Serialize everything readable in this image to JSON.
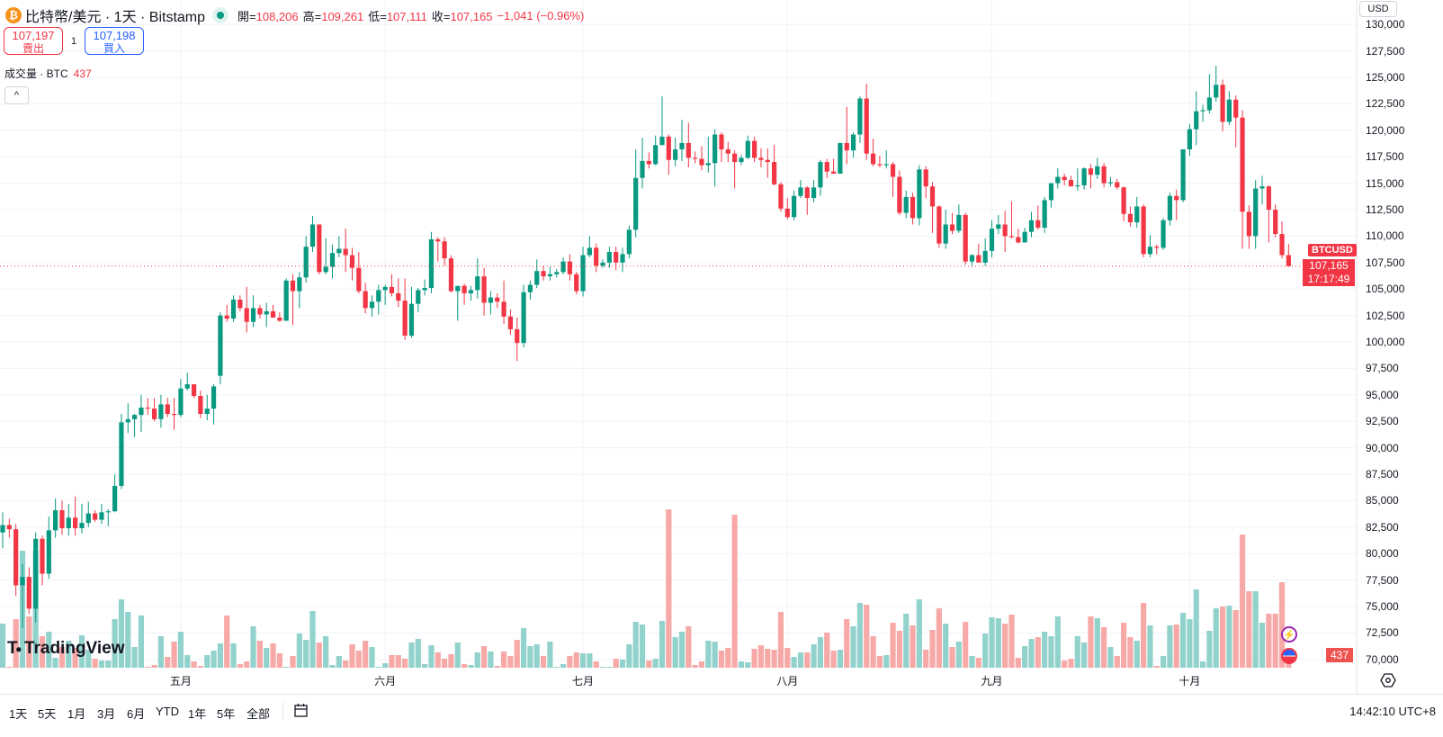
{
  "header": {
    "symbol_icon": "bitcoin-icon",
    "title": "比特幣/美元 · 1天 · Bitstamp",
    "open_label": "開=",
    "open": "108,206",
    "high_label": "高=",
    "high": "109,261",
    "low_label": "低=",
    "low": "107,111",
    "close_label": "收=",
    "close": "107,165",
    "change": "−1,041 (−0.96%)"
  },
  "trade": {
    "sell_price": "107,197",
    "sell_label": "賣出",
    "quantity": "1",
    "buy_price": "107,198",
    "buy_label": "買入"
  },
  "volume_legend": {
    "label": "成交量 · BTC",
    "value": "437"
  },
  "collapse_icon": "^",
  "currency": "USD",
  "price_axis": [
    "130,000",
    "127,500",
    "125,000",
    "122,500",
    "120,000",
    "117,500",
    "115,000",
    "112,500",
    "110,000",
    "107,500",
    "105,000",
    "102,500",
    "100,000",
    "97,500",
    "95,000",
    "92,500",
    "90,000",
    "87,500",
    "85,000",
    "82,500",
    "80,000",
    "77,500",
    "75,000",
    "72,500",
    "70,000"
  ],
  "last_price": {
    "symbol": "BTCUSD",
    "price": "107,165",
    "countdown": "17:17:49"
  },
  "volume_tag": "437",
  "months": [
    {
      "label": "五月",
      "index": 27
    },
    {
      "label": "六月",
      "index": 58
    },
    {
      "label": "七月",
      "index": 88
    },
    {
      "label": "八月",
      "index": 119
    },
    {
      "label": "九月",
      "index": 150
    },
    {
      "label": "十月",
      "index": 180
    }
  ],
  "bottom_bar": {
    "ranges": [
      "1天",
      "5天",
      "1月",
      "3月",
      "6月",
      "YTD",
      "1年",
      "5年",
      "全部"
    ],
    "clock": "14:42:10 UTC+8"
  },
  "logo": "TradingView",
  "colors": {
    "up": "#089981",
    "down": "#f23645",
    "vol_up": "#92d2cc",
    "vol_down": "#f7a9a7"
  },
  "chart_data": {
    "type": "candlestick",
    "title": "比特幣/美元 · 1天 · Bitstamp",
    "ylim": [
      70000,
      131000
    ],
    "y_ticks_step": 2500,
    "grid": true,
    "ohlc": [
      [
        82000,
        83900,
        80500,
        82700
      ],
      [
        82700,
        83300,
        81500,
        82300
      ],
      [
        82300,
        82800,
        76000,
        77000
      ],
      [
        77000,
        79000,
        73000,
        77800
      ],
      [
        77800,
        78700,
        74300,
        74800
      ],
      [
        74800,
        82000,
        73500,
        81400
      ],
      [
        81400,
        81700,
        77000,
        78100
      ],
      [
        78100,
        83500,
        77600,
        82200
      ],
      [
        82200,
        85200,
        81500,
        84100
      ],
      [
        84100,
        85000,
        81800,
        82400
      ],
      [
        82400,
        84700,
        81700,
        83400
      ],
      [
        83400,
        85400,
        81700,
        82400
      ],
      [
        82400,
        84700,
        81900,
        82900
      ],
      [
        82900,
        84900,
        82500,
        83800
      ],
      [
        83800,
        84100,
        83000,
        83200
      ],
      [
        83200,
        84700,
        82800,
        83900
      ],
      [
        83900,
        84200,
        82600,
        84000
      ],
      [
        84000,
        87500,
        83900,
        86400
      ],
      [
        86400,
        93200,
        86100,
        92400
      ],
      [
        92400,
        94200,
        91400,
        92700
      ],
      [
        92700,
        93200,
        91000,
        93100
      ],
      [
        93100,
        95000,
        91500,
        93800
      ],
      [
        93800,
        94700,
        93100,
        93700
      ],
      [
        93700,
        94700,
        92500,
        92700
      ],
      [
        92700,
        95000,
        91900,
        94100
      ],
      [
        94100,
        94700,
        92900,
        93200
      ],
      [
        93200,
        94700,
        91700,
        93100
      ],
      [
        93100,
        96500,
        92900,
        95600
      ],
      [
        95600,
        97100,
        95400,
        96000
      ],
      [
        96000,
        96000,
        94700,
        94900
      ],
      [
        94900,
        95400,
        92800,
        93200
      ],
      [
        93200,
        95000,
        92600,
        93700
      ],
      [
        93700,
        96000,
        92200,
        95800
      ],
      [
        96800,
        102800,
        96000,
        102500
      ],
      [
        102500,
        103500,
        101900,
        102200
      ],
      [
        102200,
        104400,
        101900,
        104000
      ],
      [
        104000,
        104400,
        102900,
        103200
      ],
      [
        103200,
        105200,
        100900,
        101900
      ],
      [
        101900,
        104400,
        101400,
        103200
      ],
      [
        103200,
        103500,
        102200,
        102600
      ],
      [
        102600,
        103700,
        101400,
        102900
      ],
      [
        102900,
        103500,
        102300,
        102300
      ],
      [
        102300,
        102800,
        101900,
        102000
      ],
      [
        102000,
        106000,
        102000,
        105800
      ],
      [
        105800,
        106400,
        101600,
        104800
      ],
      [
        104800,
        106600,
        103200,
        106100
      ],
      [
        106100,
        110000,
        105600,
        109000
      ],
      [
        109000,
        111900,
        108500,
        111100
      ],
      [
        111100,
        111100,
        106400,
        106600
      ],
      [
        106600,
        109800,
        106400,
        107100
      ],
      [
        107100,
        109200,
        106000,
        108400
      ],
      [
        108400,
        110000,
        108000,
        108800
      ],
      [
        108800,
        110700,
        106600,
        108200
      ],
      [
        108200,
        108900,
        105800,
        107000
      ],
      [
        107000,
        108500,
        104600,
        104800
      ],
      [
        104800,
        105600,
        102700,
        103200
      ],
      [
        103200,
        104400,
        102400,
        103800
      ],
      [
        103800,
        105400,
        102600,
        104900
      ],
      [
        104900,
        105400,
        103500,
        105200
      ],
      [
        105200,
        106400,
        104300,
        104600
      ],
      [
        104600,
        106000,
        103300,
        103900
      ],
      [
        103900,
        106000,
        100200,
        100600
      ],
      [
        100600,
        105200,
        100400,
        103600
      ],
      [
        103600,
        105100,
        102800,
        104900
      ],
      [
        104900,
        105900,
        104400,
        105100
      ],
      [
        105100,
        110400,
        104600,
        109700
      ],
      [
        109700,
        109900,
        107600,
        109500
      ],
      [
        109500,
        109900,
        107200,
        107900
      ],
      [
        107900,
        108200,
        104700,
        104800
      ],
      [
        104800,
        105200,
        102000,
        105300
      ],
      [
        105300,
        105500,
        103500,
        104600
      ],
      [
        104600,
        105300,
        103900,
        104900
      ],
      [
        104900,
        107900,
        104100,
        106200
      ],
      [
        106200,
        107000,
        102500,
        103700
      ],
      [
        103700,
        104800,
        102600,
        104200
      ],
      [
        104200,
        104600,
        103200,
        103800
      ],
      [
        103800,
        105800,
        101700,
        102400
      ],
      [
        102400,
        103100,
        100700,
        101200
      ],
      [
        101200,
        102300,
        98200,
        99900
      ],
      [
        99900,
        105400,
        99500,
        104700
      ],
      [
        104700,
        105800,
        104000,
        105400
      ],
      [
        105400,
        107800,
        105100,
        106700
      ],
      [
        106700,
        107200,
        105800,
        106200
      ],
      [
        106200,
        107100,
        105800,
        106400
      ],
      [
        106400,
        106900,
        106100,
        106600
      ],
      [
        106600,
        108000,
        106400,
        107600
      ],
      [
        107600,
        108300,
        105800,
        106400
      ],
      [
        106400,
        106600,
        104500,
        104800
      ],
      [
        104800,
        109000,
        104300,
        108200
      ],
      [
        108200,
        110000,
        108000,
        108900
      ],
      [
        108900,
        109300,
        106600,
        107200
      ],
      [
        107200,
        107800,
        107000,
        107500
      ],
      [
        107500,
        109000,
        107000,
        108500
      ],
      [
        108500,
        109000,
        106800,
        107500
      ],
      [
        107500,
        108900,
        106600,
        108300
      ],
      [
        108300,
        111000,
        107900,
        110600
      ],
      [
        110600,
        118200,
        109900,
        115500
      ],
      [
        115500,
        119300,
        114500,
        117100
      ],
      [
        117100,
        117900,
        116400,
        116800
      ],
      [
        116800,
        119500,
        116700,
        118600
      ],
      [
        118600,
        123200,
        118600,
        119400
      ],
      [
        119400,
        119600,
        115800,
        117200
      ],
      [
        117200,
        119300,
        116600,
        118200
      ],
      [
        118200,
        121000,
        117100,
        118800
      ],
      [
        118800,
        120700,
        116500,
        117400
      ],
      [
        117400,
        118000,
        116900,
        117300
      ],
      [
        117300,
        118500,
        116200,
        116700
      ],
      [
        116700,
        119400,
        116000,
        116900
      ],
      [
        116900,
        120100,
        114700,
        119600
      ],
      [
        119600,
        119800,
        117000,
        118200
      ],
      [
        118200,
        118900,
        117000,
        117800
      ],
      [
        117800,
        118100,
        114500,
        117000
      ],
      [
        117000,
        117700,
        116700,
        117400
      ],
      [
        117400,
        119500,
        117300,
        119000
      ],
      [
        119000,
        119400,
        117000,
        117400
      ],
      [
        117400,
        118300,
        116500,
        117200
      ],
      [
        117200,
        118300,
        115500,
        117000
      ],
      [
        117000,
        118600,
        114800,
        114900
      ],
      [
        114900,
        115100,
        112300,
        112600
      ],
      [
        112600,
        113600,
        111600,
        111800
      ],
      [
        111800,
        114300,
        111500,
        113800
      ],
      [
        113800,
        115300,
        113600,
        114600
      ],
      [
        114600,
        114700,
        112000,
        113600
      ],
      [
        113600,
        115300,
        113200,
        114600
      ],
      [
        114600,
        117200,
        113800,
        117000
      ],
      [
        117000,
        117300,
        115500,
        116100
      ],
      [
        116100,
        117300,
        115900,
        115900
      ],
      [
        115900,
        118800,
        115900,
        118800
      ],
      [
        118800,
        122200,
        116800,
        118100
      ],
      [
        118100,
        119800,
        117400,
        119600
      ],
      [
        119600,
        123200,
        118800,
        123000
      ],
      [
        123000,
        124400,
        117200,
        117800
      ],
      [
        117800,
        119200,
        116600,
        116800
      ],
      [
        116800,
        117600,
        116500,
        116700
      ],
      [
        116700,
        118100,
        116400,
        116800
      ],
      [
        116800,
        117000,
        113700,
        115600
      ],
      [
        115600,
        116200,
        112000,
        112200
      ],
      [
        112200,
        114300,
        111700,
        113700
      ],
      [
        113700,
        114100,
        111100,
        111700
      ],
      [
        111700,
        116700,
        111000,
        116300
      ],
      [
        116300,
        116600,
        113600,
        114700
      ],
      [
        114700,
        115100,
        110300,
        112800
      ],
      [
        112800,
        112900,
        108900,
        109300
      ],
      [
        109300,
        112500,
        108800,
        111100
      ],
      [
        111100,
        112200,
        110200,
        110500
      ],
      [
        110500,
        113000,
        110300,
        112000
      ],
      [
        112000,
        112200,
        107300,
        107600
      ],
      [
        107600,
        108300,
        107100,
        108200
      ],
      [
        108200,
        109300,
        107600,
        107500
      ],
      [
        107500,
        109800,
        107200,
        108600
      ],
      [
        108600,
        111500,
        108000,
        110700
      ],
      [
        110700,
        112000,
        110200,
        111100
      ],
      [
        111100,
        112400,
        108500,
        110000
      ],
      [
        110000,
        113300,
        109800,
        109900
      ],
      [
        109900,
        110700,
        109300,
        109400
      ],
      [
        109400,
        110800,
        109400,
        110400
      ],
      [
        110400,
        112300,
        109900,
        111500
      ],
      [
        111500,
        112900,
        110600,
        110800
      ],
      [
        110800,
        113700,
        110300,
        113400
      ],
      [
        113400,
        115000,
        112700,
        115000
      ],
      [
        115000,
        116400,
        114500,
        115600
      ],
      [
        115600,
        115900,
        114800,
        115300
      ],
      [
        115300,
        115700,
        114700,
        114700
      ],
      [
        114700,
        116400,
        114300,
        114800
      ],
      [
        114800,
        116500,
        114400,
        116400
      ],
      [
        116400,
        116800,
        114500,
        115800
      ],
      [
        115800,
        117400,
        115400,
        116600
      ],
      [
        116600,
        116900,
        114600,
        115000
      ],
      [
        115000,
        115600,
        114700,
        115100
      ],
      [
        115100,
        115400,
        114400,
        114600
      ],
      [
        114600,
        114700,
        111400,
        112100
      ],
      [
        112100,
        112800,
        110900,
        111300
      ],
      [
        111300,
        113700,
        110800,
        112800
      ],
      [
        112800,
        113000,
        108000,
        108300
      ],
      [
        108300,
        110100,
        108000,
        109000
      ],
      [
        109000,
        109200,
        108300,
        108900
      ],
      [
        108900,
        111700,
        108700,
        111500
      ],
      [
        111500,
        114100,
        111000,
        113800
      ],
      [
        113800,
        114400,
        111500,
        113400
      ],
      [
        113400,
        118200,
        113200,
        118200
      ],
      [
        118200,
        120600,
        117600,
        120100
      ],
      [
        120100,
        123700,
        118600,
        121800
      ],
      [
        121800,
        122400,
        120800,
        121900
      ],
      [
        121900,
        125300,
        121600,
        123100
      ],
      [
        123100,
        126100,
        122700,
        124300
      ],
      [
        124300,
        124800,
        119900,
        120800
      ],
      [
        120800,
        123700,
        120500,
        122900
      ],
      [
        122900,
        123300,
        118400,
        121200
      ],
      [
        121200,
        121900,
        108800,
        112300
      ],
      [
        112300,
        112900,
        108800,
        110000
      ],
      [
        110000,
        115300,
        108800,
        114500
      ],
      [
        114500,
        115700,
        113000,
        114700
      ],
      [
        114700,
        114800,
        109400,
        112500
      ],
      [
        112500,
        113000,
        109900,
        110200
      ],
      [
        110200,
        111400,
        107900,
        108206
      ],
      [
        108206,
        109261,
        107111,
        107165
      ]
    ],
    "volume": [
      1470,
      30,
      1620,
      3900,
      1710,
      3900,
      1050,
      1200,
      330,
      690,
      900,
      660,
      1080,
      600,
      300,
      240,
      240,
      1620,
      2280,
      1860,
      690,
      1740,
      30,
      90,
      1050,
      360,
      870,
      1200,
      420,
      210,
      60,
      420,
      570,
      810,
      1740,
      810,
      120,
      210,
      1380,
      900,
      660,
      810,
      480,
      30,
      390,
      1140,
      930,
      1890,
      840,
      1050,
      90,
      390,
      240,
      780,
      570,
      900,
      690,
      30,
      150,
      420,
      420,
      300,
      840,
      960,
      120,
      750,
      510,
      300,
      450,
      840,
      120,
      90,
      510,
      720,
      540,
      60,
      540,
      390,
      930,
      1320,
      720,
      780,
      390,
      870,
      30,
      120,
      390,
      510,
      480,
      480,
      210,
      30,
      30,
      300,
      270,
      780,
      1530,
      1440,
      240,
      300,
      1560,
      5280,
      1020,
      1200,
      1380,
      90,
      210,
      900,
      870,
      570,
      660,
      5100,
      210,
      180,
      630,
      750,
      630,
      600,
      1860,
      660,
      360,
      510,
      510,
      780,
      1020,
      1170,
      570,
      600,
      1620,
      1380,
      2160,
      2100,
      1050,
      390,
      420,
      1500,
      1230,
      1800,
      1410,
      2280,
      600,
      1260,
      1980,
      1470,
      690,
      870,
      1530,
      390,
      330,
      1140,
      1680,
      1650,
      1470,
      1770,
      330,
      720,
      960,
      1020,
      1200,
      1050,
      1710,
      240,
      300,
      1050,
      840,
      1710,
      1650,
      1350,
      690,
      390,
      1500,
      1020,
      900,
      2160,
      1410,
      60,
      390,
      1410,
      1440,
      1830,
      1620,
      2610,
      210,
      1230,
      1980,
      2040,
      2070,
      1920,
      4440,
      2550,
      2550,
      1500,
      1800,
      1800,
      2850,
      437
    ],
    "last_price": 107165
  }
}
